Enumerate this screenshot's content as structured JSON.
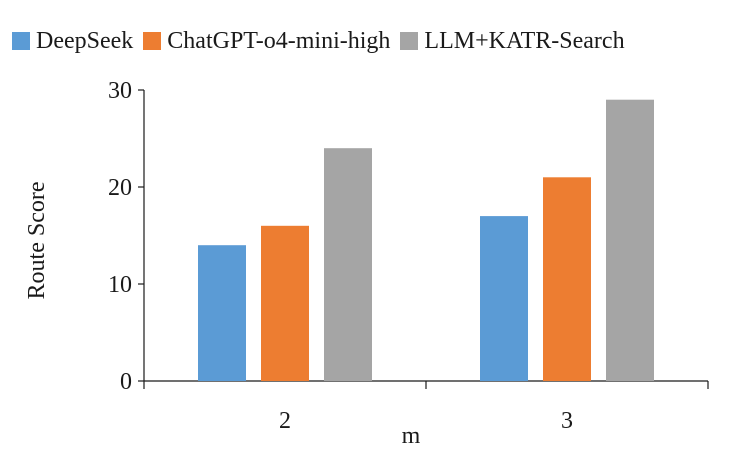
{
  "chart_data": {
    "type": "bar",
    "categories": [
      "2",
      "3"
    ],
    "series": [
      {
        "name": "DeepSeek",
        "color": "#5b9bd5",
        "values": [
          14,
          17
        ]
      },
      {
        "name": "ChatGPT-o4-mini-high",
        "color": "#ed7d31",
        "values": [
          16,
          21
        ]
      },
      {
        "name": "LLM+KATR-Search",
        "color": "#a5a5a5",
        "values": [
          24,
          29
        ]
      }
    ],
    "title": "",
    "xlabel": "m",
    "ylabel": "Route Score",
    "ylim": [
      0,
      30
    ],
    "yticks": [
      0,
      10,
      20,
      30
    ],
    "grid": false,
    "legend_position": "top"
  }
}
